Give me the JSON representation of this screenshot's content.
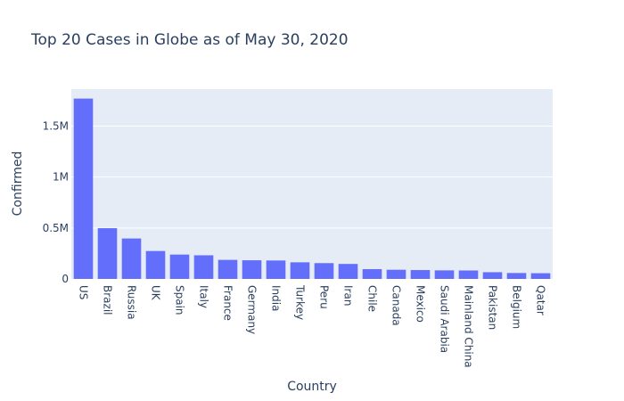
{
  "chart_data": {
    "type": "bar",
    "title": "Top 20 Cases in Globe as of May 30, 2020",
    "xlabel": "Country",
    "ylabel": "Confirmed",
    "categories": [
      "US",
      "Brazil",
      "Russia",
      "UK",
      "Spain",
      "Italy",
      "France",
      "Germany",
      "India",
      "Turkey",
      "Peru",
      "Iran",
      "Chile",
      "Canada",
      "Mexico",
      "Saudi Arabia",
      "Mainland China",
      "Pakistan",
      "Belgium",
      "Qatar"
    ],
    "values": [
      1770000,
      498000,
      397000,
      274000,
      239000,
      232000,
      187000,
      183000,
      181000,
      163000,
      155000,
      147000,
      96000,
      90000,
      87000,
      84000,
      83000,
      66000,
      58000,
      56000
    ],
    "yticks": [
      {
        "value": 0,
        "label": "0"
      },
      {
        "value": 500000,
        "label": "0.5M"
      },
      {
        "value": 1000000,
        "label": "1M"
      },
      {
        "value": 1500000,
        "label": "1.5M"
      }
    ],
    "ylim": [
      0,
      1863000
    ],
    "grid": true,
    "colors": {
      "bar": "#636efa",
      "plot_bg": "#e5ecf6",
      "grid": "#ffffff",
      "text": "#2a3f5f"
    }
  }
}
